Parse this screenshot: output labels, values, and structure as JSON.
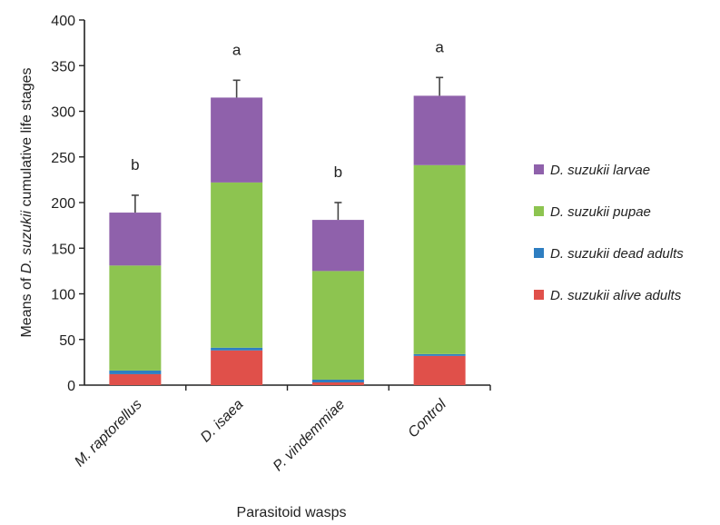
{
  "chart_data": {
    "type": "bar",
    "stacked": true,
    "categories": [
      "M. raptorellus",
      "D. isaea",
      "P. vindemmiae",
      "Control"
    ],
    "series": [
      {
        "name": "D. suzukii alive adults",
        "color": "#e0504a",
        "values": [
          12,
          38,
          3,
          32
        ]
      },
      {
        "name": "D. suzukii dead adults",
        "color": "#2e7ec1",
        "values": [
          4,
          3,
          3,
          2
        ]
      },
      {
        "name": "D. suzukii pupae",
        "color": "#8dc450",
        "values": [
          115,
          181,
          119,
          207
        ]
      },
      {
        "name": "D. suzukii larvae",
        "color": "#8f61ab",
        "values": [
          58,
          93,
          56,
          76
        ]
      }
    ],
    "error_bars": [
      19,
      19,
      19,
      20
    ],
    "significance_labels": [
      "b",
      "a",
      "b",
      "a"
    ],
    "xlabel": "Parasitoid wasps",
    "ylabel_parts": [
      "Means of ",
      "D. suzukii",
      " cumulative life stages"
    ],
    "ylim": [
      0,
      400
    ],
    "yticks": [
      0,
      50,
      100,
      150,
      200,
      250,
      300,
      350,
      400
    ],
    "grid": false,
    "legend_position": "right",
    "legend_order": [
      "D. suzukii larvae",
      "D. suzukii pupae",
      "D. suzukii dead adults",
      "D. suzukii alive adults"
    ]
  }
}
